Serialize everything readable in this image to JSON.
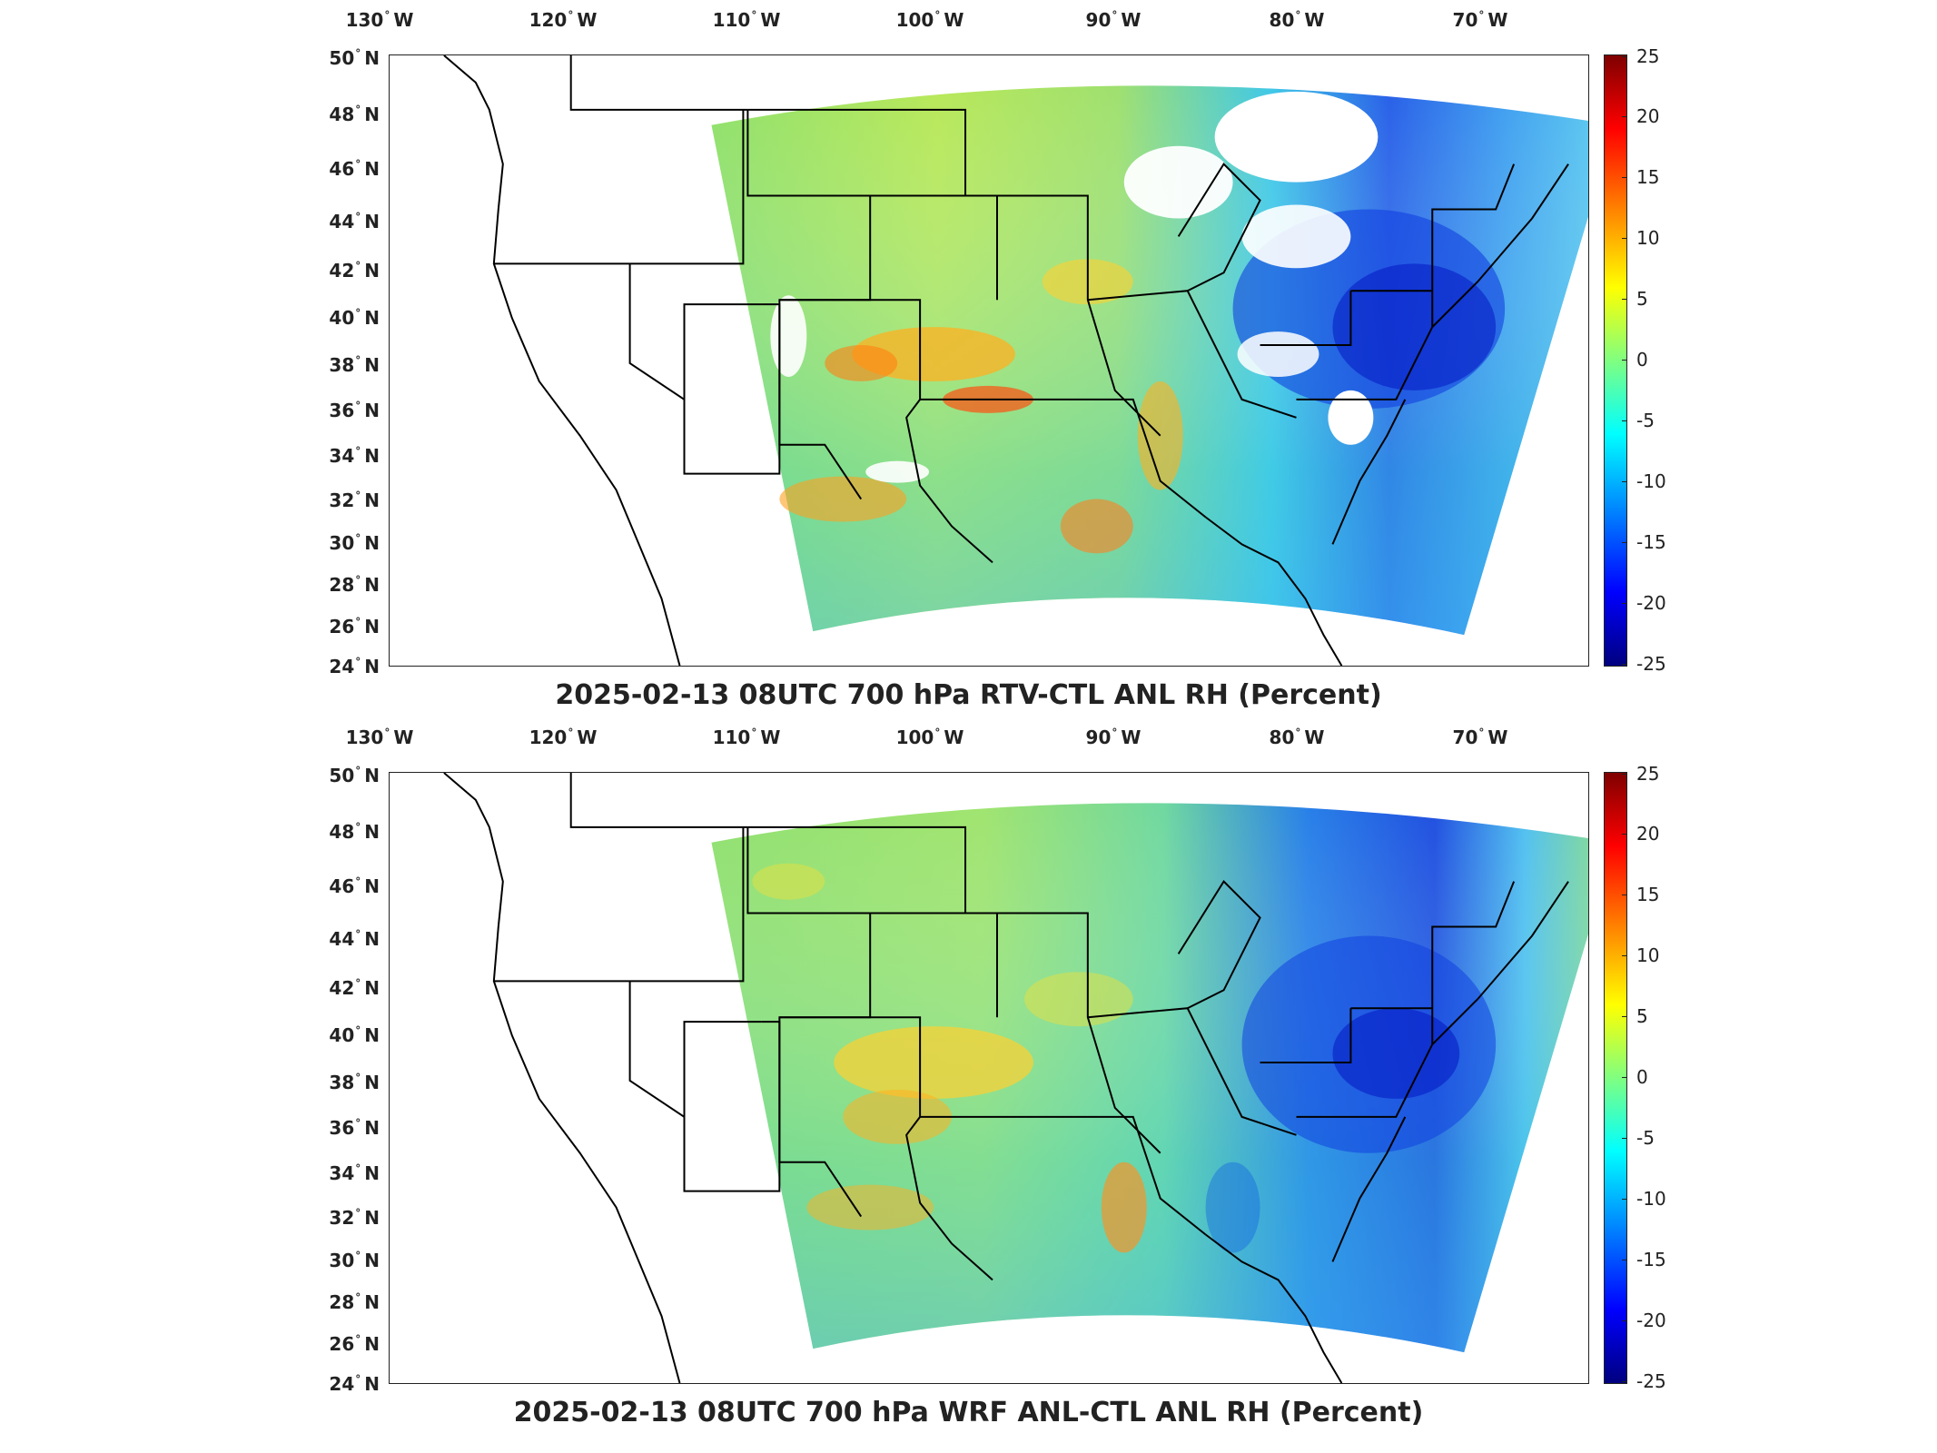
{
  "panels": [
    {
      "id": "top",
      "title": "2025-02-13 08UTC 700 hPa RTV-CTL ANL RH (Percent)"
    },
    {
      "id": "bottom",
      "title": "2025-02-13 08UTC 700 hPa WRF ANL-CTL ANL RH (Percent)"
    }
  ],
  "lon_ticks": [
    "130° W",
    "120° W",
    "110° W",
    "100° W",
    "90° W",
    "80° W",
    "70° W"
  ],
  "lat_ticks": [
    "50° N",
    "48° N",
    "46° N",
    "44° N",
    "42° N",
    "40° N",
    "38° N",
    "36° N",
    "34° N",
    "32° N",
    "30° N",
    "28° N",
    "26° N",
    "24° N"
  ],
  "colorbar": {
    "ticks": [
      "25",
      "20",
      "15",
      "10",
      "5",
      "0",
      "-5",
      "-10",
      "-15",
      "-20",
      "-25"
    ],
    "colormap": "jet",
    "colors": [
      "#7f0000",
      "#ff0000",
      "#ff8000",
      "#ffff00",
      "#80ff80",
      "#00ffff",
      "#0080ff",
      "#0000ff",
      "#00007f"
    ]
  },
  "labels": {
    "lon_130": "130",
    "lon_120": "120",
    "lon_110": "110",
    "lon_100": "100",
    "lon_90": "90",
    "lon_80": "80",
    "lon_70": "70",
    "lat_50": "50",
    "lat_48": "48",
    "lat_46": "46",
    "lat_44": "44",
    "lat_42": "42",
    "lat_40": "40",
    "lat_38": "38",
    "lat_36": "36",
    "lat_34": "34",
    "lat_32": "32",
    "lat_30": "30",
    "lat_28": "28",
    "lat_26": "26",
    "lat_24": "24",
    "west": "W",
    "north": "N"
  }
}
